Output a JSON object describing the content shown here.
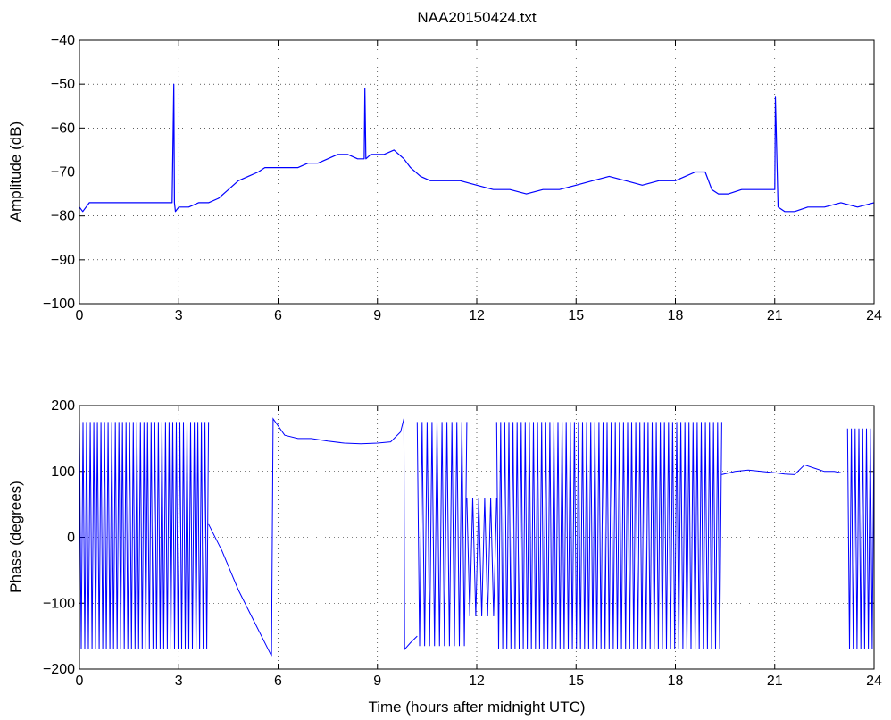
{
  "chart_data": [
    {
      "type": "line",
      "title": "NAA20150424.txt",
      "xlabel": "",
      "ylabel": "Amplitude (dB)",
      "xlim": [
        0,
        24
      ],
      "ylim": [
        -100,
        -40
      ],
      "xticks": [
        0,
        3,
        6,
        9,
        12,
        15,
        18,
        21,
        24
      ],
      "yticks": [
        -100,
        -90,
        -80,
        -70,
        -60,
        -50,
        -40
      ],
      "ytick_labels": [
        "−100",
        "−90",
        "−80",
        "−70",
        "−60",
        "−50",
        "−40"
      ],
      "grid": true,
      "line_color": "#0000ff",
      "series": [
        {
          "x": [
            0,
            0.1,
            0.3,
            0.5,
            0.8,
            1.0,
            1.2,
            1.5,
            1.8,
            2.0,
            2.2,
            2.5,
            2.8,
            2.85,
            2.87,
            2.9,
            3.0,
            3.1,
            3.3,
            3.6,
            3.9,
            4.2,
            4.5,
            4.8,
            5.1,
            5.4,
            5.6,
            5.8,
            6.0,
            6.3,
            6.6,
            6.9,
            7.2,
            7.5,
            7.8,
            8.1,
            8.4,
            8.6,
            8.62,
            8.65,
            8.8,
            9.0,
            9.2,
            9.5,
            9.8,
            10.0,
            10.3,
            10.6,
            11.0,
            11.5,
            12.0,
            12.5,
            13.0,
            13.5,
            14.0,
            14.5,
            15.0,
            15.5,
            16.0,
            16.5,
            17.0,
            17.5,
            18.0,
            18.3,
            18.6,
            18.9,
            19.1,
            19.3,
            19.6,
            20.0,
            20.5,
            20.9,
            21.0,
            21.02,
            21.1,
            21.3,
            21.6,
            22.0,
            22.5,
            23.0,
            23.5,
            24.0
          ],
          "y": [
            -78,
            -79,
            -77,
            -77,
            -77,
            -77,
            -77,
            -77,
            -77,
            -77,
            -77,
            -77,
            -77,
            -50,
            -77,
            -79,
            -78,
            -78,
            -78,
            -77,
            -77,
            -76,
            -74,
            -72,
            -71,
            -70,
            -69,
            -69,
            -69,
            -69,
            -69,
            -68,
            -68,
            -67,
            -66,
            -66,
            -67,
            -67,
            -51,
            -67,
            -66,
            -66,
            -66,
            -65,
            -67,
            -69,
            -71,
            -72,
            -72,
            -72,
            -73,
            -74,
            -74,
            -75,
            -74,
            -74,
            -73,
            -72,
            -71,
            -72,
            -73,
            -72,
            -72,
            -71,
            -70,
            -70,
            -74,
            -75,
            -75,
            -74,
            -74,
            -74,
            -74,
            -53,
            -78,
            -79,
            -79,
            -78,
            -78,
            -77,
            -78,
            -77
          ]
        }
      ]
    },
    {
      "type": "line",
      "title": "",
      "xlabel": "Time (hours after midnight UTC)",
      "ylabel": "Phase (degrees)",
      "xlim": [
        0,
        24
      ],
      "ylim": [
        -200,
        200
      ],
      "xticks": [
        0,
        3,
        6,
        9,
        12,
        15,
        18,
        21,
        24
      ],
      "yticks": [
        -200,
        -100,
        0,
        100,
        200
      ],
      "ytick_labels": [
        "−200",
        "−100",
        "0",
        "100",
        "200"
      ],
      "grid": true,
      "line_color": "#0000ff",
      "segments": [
        {
          "kind": "wrap",
          "x_start": 0,
          "x_end": 3.9,
          "cycles": 36,
          "low": -170,
          "high": 175
        },
        {
          "kind": "line",
          "x": [
            3.9,
            4.3,
            4.8,
            5.3,
            5.8
          ],
          "y": [
            20,
            -20,
            -80,
            -130,
            -180
          ]
        },
        {
          "kind": "line",
          "x": [
            5.8,
            5.85,
            6.2,
            6.6,
            7.0,
            7.5,
            8.0,
            8.5,
            9.0,
            9.4,
            9.7,
            9.8
          ],
          "y": [
            -180,
            180,
            155,
            150,
            150,
            146,
            143,
            142,
            143,
            145,
            160,
            180
          ]
        },
        {
          "kind": "line",
          "x": [
            9.8,
            9.82,
            10.0,
            10.2
          ],
          "y": [
            180,
            -170,
            -160,
            -150
          ]
        },
        {
          "kind": "wrap",
          "x_start": 10.2,
          "x_end": 11.7,
          "cycles": 10,
          "low": -165,
          "high": 175
        },
        {
          "kind": "wrap",
          "x_start": 11.7,
          "x_end": 12.6,
          "cycles": 5,
          "low": -120,
          "high": 60
        },
        {
          "kind": "wrap",
          "x_start": 12.6,
          "x_end": 19.4,
          "cycles": 55,
          "low": -170,
          "high": 175
        },
        {
          "kind": "line",
          "x": [
            19.4,
            19.8,
            20.2,
            20.6,
            21.0,
            21.3,
            21.6,
            21.9,
            22.2,
            22.5,
            22.8,
            23.0
          ],
          "y": [
            95,
            100,
            102,
            100,
            98,
            96,
            95,
            110,
            105,
            100,
            100,
            98
          ]
        },
        {
          "kind": "wrap",
          "x_start": 23.2,
          "x_end": 24.0,
          "cycles": 7,
          "low": -170,
          "high": 165
        }
      ]
    }
  ]
}
